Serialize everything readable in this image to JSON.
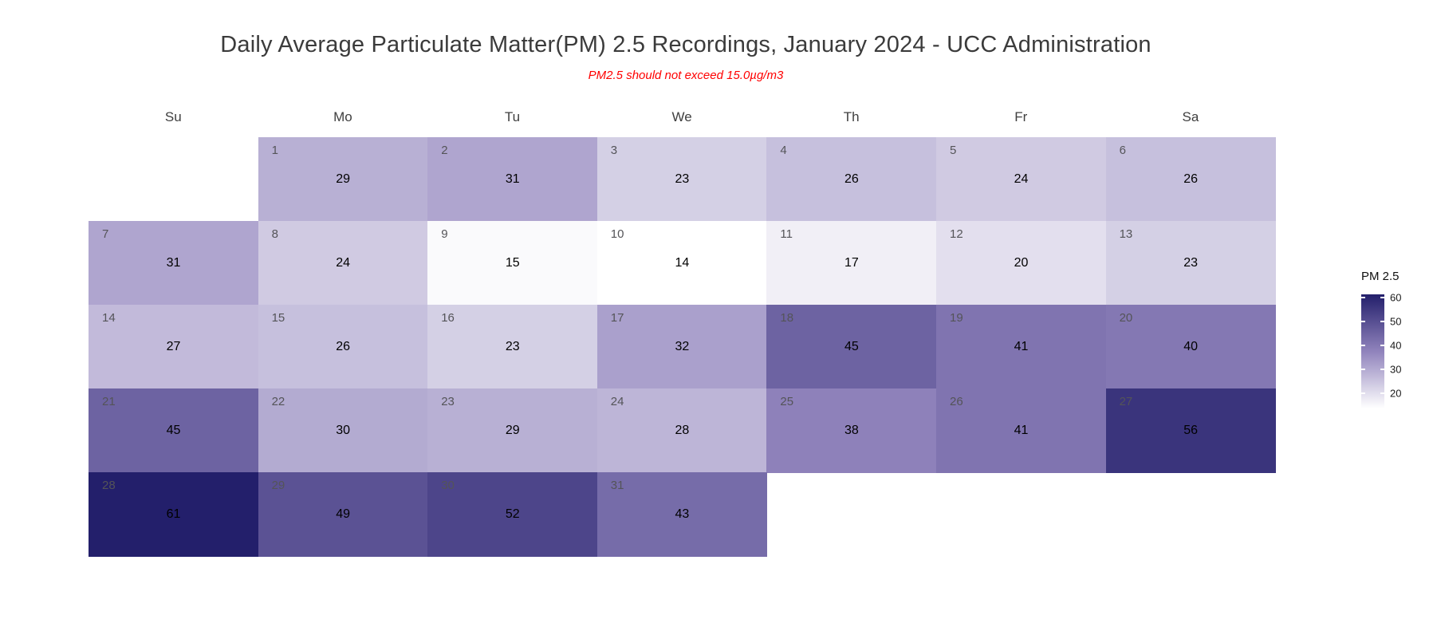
{
  "chart": {
    "title": "Daily Average Particulate Matter(PM) 2.5 Recordings, January 2024 - UCC Administration",
    "subtitle": "PM2.5 should not exceed 15.0µg/m3",
    "colors": {
      "title_text": "#3b3b3b",
      "subtitle_text": "#ff0000",
      "day_number_text": "#545458",
      "value_text": "#000000",
      "background": "#ffffff"
    }
  },
  "legend": {
    "title": "PM 2.5",
    "tick_labels": [
      "60",
      "50",
      "40",
      "30",
      "20"
    ]
  },
  "chart_data": {
    "type": "heatmap",
    "subtype": "calendar-month",
    "title": "Daily Average Particulate Matter(PM) 2.5 Recordings, January 2024 - UCC Administration",
    "subtitle": "PM2.5 should not exceed 15.0µg/m3",
    "month": "January 2024",
    "weekday_labels": [
      "Su",
      "Mo",
      "Tu",
      "We",
      "Th",
      "Fr",
      "Sa"
    ],
    "days": [
      {
        "day": 1,
        "row": 0,
        "col": 1,
        "value": 29
      },
      {
        "day": 2,
        "row": 0,
        "col": 2,
        "value": 31
      },
      {
        "day": 3,
        "row": 0,
        "col": 3,
        "value": 23
      },
      {
        "day": 4,
        "row": 0,
        "col": 4,
        "value": 26
      },
      {
        "day": 5,
        "row": 0,
        "col": 5,
        "value": 24
      },
      {
        "day": 6,
        "row": 0,
        "col": 6,
        "value": 26
      },
      {
        "day": 7,
        "row": 1,
        "col": 0,
        "value": 31
      },
      {
        "day": 8,
        "row": 1,
        "col": 1,
        "value": 24
      },
      {
        "day": 9,
        "row": 1,
        "col": 2,
        "value": 15
      },
      {
        "day": 10,
        "row": 1,
        "col": 3,
        "value": 14
      },
      {
        "day": 11,
        "row": 1,
        "col": 4,
        "value": 17
      },
      {
        "day": 12,
        "row": 1,
        "col": 5,
        "value": 20
      },
      {
        "day": 13,
        "row": 1,
        "col": 6,
        "value": 23
      },
      {
        "day": 14,
        "row": 2,
        "col": 0,
        "value": 27
      },
      {
        "day": 15,
        "row": 2,
        "col": 1,
        "value": 26
      },
      {
        "day": 16,
        "row": 2,
        "col": 2,
        "value": 23
      },
      {
        "day": 17,
        "row": 2,
        "col": 3,
        "value": 32
      },
      {
        "day": 18,
        "row": 2,
        "col": 4,
        "value": 45
      },
      {
        "day": 19,
        "row": 2,
        "col": 5,
        "value": 41
      },
      {
        "day": 20,
        "row": 2,
        "col": 6,
        "value": 40
      },
      {
        "day": 21,
        "row": 3,
        "col": 0,
        "value": 45
      },
      {
        "day": 22,
        "row": 3,
        "col": 1,
        "value": 30
      },
      {
        "day": 23,
        "row": 3,
        "col": 2,
        "value": 29
      },
      {
        "day": 24,
        "row": 3,
        "col": 3,
        "value": 28
      },
      {
        "day": 25,
        "row": 3,
        "col": 4,
        "value": 38
      },
      {
        "day": 26,
        "row": 3,
        "col": 5,
        "value": 41
      },
      {
        "day": 27,
        "row": 3,
        "col": 6,
        "value": 56
      },
      {
        "day": 28,
        "row": 4,
        "col": 0,
        "value": 61
      },
      {
        "day": 29,
        "row": 4,
        "col": 1,
        "value": 49
      },
      {
        "day": 30,
        "row": 4,
        "col": 2,
        "value": 52
      },
      {
        "day": 31,
        "row": 4,
        "col": 3,
        "value": 43
      }
    ],
    "fill_scale": {
      "name": "PM 2.5",
      "gradient_stops": [
        "#FFFFFF",
        "#9083BC",
        "#231F6B"
      ],
      "value_domain": [
        14,
        61
      ],
      "legend_domain": [
        13.5,
        61.5
      ],
      "legend_ticks": [
        60,
        50,
        40,
        30,
        20
      ],
      "legend_position": "right"
    },
    "grid": false
  }
}
